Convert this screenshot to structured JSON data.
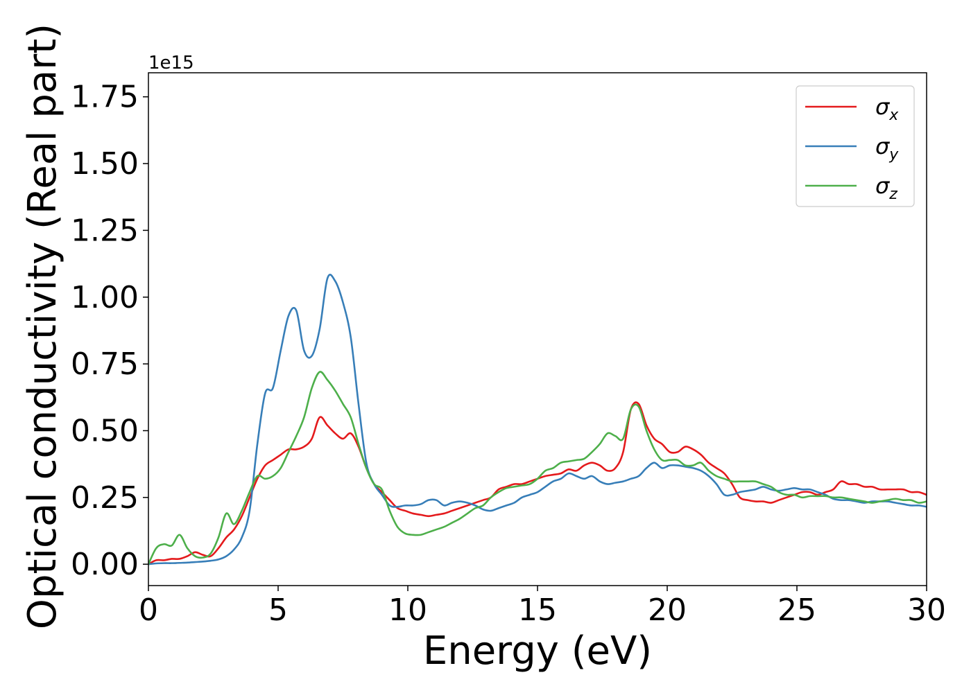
{
  "chart_data": {
    "type": "line",
    "xlabel": "Energy (eV)",
    "ylabel": "Optical conductivity (Real part)",
    "y_offset_label": "1e15",
    "xlim": [
      0,
      30
    ],
    "ylim": [
      -0.08,
      1.84
    ],
    "x_ticks": [
      0,
      5,
      10,
      15,
      20,
      25,
      30
    ],
    "x_tick_labels": [
      "0",
      "5",
      "10",
      "15",
      "20",
      "25",
      "30"
    ],
    "y_ticks": [
      0.0,
      0.25,
      0.5,
      0.75,
      1.0,
      1.25,
      1.5,
      1.75
    ],
    "y_tick_labels": [
      "0.00",
      "0.25",
      "0.50",
      "0.75",
      "1.00",
      "1.25",
      "1.50",
      "1.75"
    ],
    "grid": false,
    "legend_position": "top-right",
    "series": [
      {
        "name": "σx",
        "symbol": "σ",
        "subscript": "x",
        "color": "#e41a1c",
        "x": [
          0,
          0.3,
          0.6,
          0.9,
          1.2,
          1.5,
          1.8,
          2.1,
          2.4,
          2.7,
          3.0,
          3.3,
          3.6,
          3.9,
          4.2,
          4.5,
          4.8,
          5.1,
          5.4,
          5.7,
          6.0,
          6.3,
          6.6,
          6.9,
          7.2,
          7.5,
          7.8,
          8.1,
          8.4,
          8.7,
          9.0,
          9.3,
          9.6,
          9.9,
          10.2,
          10.5,
          10.8,
          11.1,
          11.4,
          11.7,
          12.0,
          12.3,
          12.6,
          12.9,
          13.2,
          13.5,
          13.8,
          14.1,
          14.4,
          14.7,
          15.0,
          15.3,
          15.6,
          15.9,
          16.2,
          16.5,
          16.8,
          17.1,
          17.4,
          17.7,
          18.0,
          18.3,
          18.6,
          18.9,
          19.2,
          19.5,
          19.8,
          20.1,
          20.4,
          20.7,
          21.0,
          21.3,
          21.6,
          21.9,
          22.2,
          22.5,
          22.8,
          23.1,
          23.4,
          23.7,
          24.0,
          24.3,
          24.6,
          24.9,
          25.2,
          25.5,
          25.8,
          26.1,
          26.4,
          26.7,
          27.0,
          27.3,
          27.6,
          27.9,
          28.2,
          28.5,
          28.8,
          29.1,
          29.4,
          29.7,
          30.0
        ],
        "y": [
          0.0,
          0.015,
          0.015,
          0.02,
          0.02,
          0.03,
          0.045,
          0.035,
          0.03,
          0.06,
          0.1,
          0.13,
          0.18,
          0.25,
          0.32,
          0.37,
          0.39,
          0.41,
          0.43,
          0.43,
          0.44,
          0.47,
          0.55,
          0.52,
          0.49,
          0.47,
          0.49,
          0.44,
          0.36,
          0.3,
          0.27,
          0.24,
          0.21,
          0.2,
          0.19,
          0.185,
          0.18,
          0.185,
          0.19,
          0.2,
          0.21,
          0.22,
          0.23,
          0.24,
          0.25,
          0.28,
          0.29,
          0.3,
          0.3,
          0.31,
          0.32,
          0.33,
          0.335,
          0.34,
          0.355,
          0.35,
          0.37,
          0.38,
          0.37,
          0.35,
          0.36,
          0.42,
          0.58,
          0.6,
          0.52,
          0.47,
          0.45,
          0.42,
          0.42,
          0.44,
          0.43,
          0.41,
          0.38,
          0.36,
          0.34,
          0.3,
          0.25,
          0.24,
          0.235,
          0.235,
          0.23,
          0.24,
          0.25,
          0.26,
          0.27,
          0.27,
          0.26,
          0.27,
          0.28,
          0.31,
          0.3,
          0.3,
          0.29,
          0.29,
          0.28,
          0.28,
          0.28,
          0.28,
          0.27,
          0.27,
          0.26
        ]
      },
      {
        "name": "σy",
        "symbol": "σ",
        "subscript": "y",
        "color": "#377eb8",
        "x": [
          0,
          0.3,
          0.6,
          0.9,
          1.2,
          1.5,
          1.8,
          2.1,
          2.4,
          2.7,
          3.0,
          3.3,
          3.6,
          3.9,
          4.2,
          4.5,
          4.8,
          5.1,
          5.4,
          5.7,
          6.0,
          6.3,
          6.6,
          6.9,
          7.2,
          7.5,
          7.8,
          8.1,
          8.4,
          8.7,
          9.0,
          9.3,
          9.6,
          9.9,
          10.2,
          10.5,
          10.8,
          11.1,
          11.4,
          11.7,
          12.0,
          12.3,
          12.6,
          12.9,
          13.2,
          13.5,
          13.8,
          14.1,
          14.4,
          14.7,
          15.0,
          15.3,
          15.6,
          15.9,
          16.2,
          16.5,
          16.8,
          17.1,
          17.4,
          17.7,
          18.0,
          18.3,
          18.6,
          18.9,
          19.2,
          19.5,
          19.8,
          20.1,
          20.4,
          20.7,
          21.0,
          21.3,
          21.6,
          21.9,
          22.2,
          22.5,
          22.8,
          23.1,
          23.4,
          23.7,
          24.0,
          24.3,
          24.6,
          24.9,
          25.2,
          25.5,
          25.8,
          26.1,
          26.4,
          26.7,
          27.0,
          27.3,
          27.6,
          27.9,
          28.2,
          28.5,
          28.8,
          29.1,
          29.4,
          29.7,
          30.0
        ],
        "y": [
          0.0,
          0.003,
          0.004,
          0.004,
          0.005,
          0.006,
          0.008,
          0.01,
          0.013,
          0.018,
          0.03,
          0.055,
          0.1,
          0.2,
          0.45,
          0.64,
          0.66,
          0.8,
          0.93,
          0.95,
          0.8,
          0.78,
          0.88,
          1.07,
          1.06,
          0.98,
          0.85,
          0.6,
          0.38,
          0.3,
          0.26,
          0.22,
          0.215,
          0.22,
          0.22,
          0.225,
          0.24,
          0.24,
          0.22,
          0.23,
          0.235,
          0.23,
          0.22,
          0.205,
          0.2,
          0.21,
          0.22,
          0.23,
          0.25,
          0.26,
          0.27,
          0.29,
          0.31,
          0.32,
          0.34,
          0.33,
          0.32,
          0.33,
          0.31,
          0.3,
          0.305,
          0.31,
          0.32,
          0.33,
          0.36,
          0.38,
          0.36,
          0.37,
          0.37,
          0.365,
          0.36,
          0.35,
          0.33,
          0.3,
          0.26,
          0.26,
          0.27,
          0.275,
          0.28,
          0.29,
          0.28,
          0.275,
          0.28,
          0.285,
          0.28,
          0.28,
          0.27,
          0.26,
          0.245,
          0.24,
          0.24,
          0.235,
          0.23,
          0.235,
          0.235,
          0.235,
          0.23,
          0.225,
          0.22,
          0.22,
          0.215
        ]
      },
      {
        "name": "σz",
        "symbol": "σ",
        "subscript": "z",
        "color": "#4daf4a",
        "x": [
          0,
          0.3,
          0.6,
          0.9,
          1.2,
          1.5,
          1.8,
          2.1,
          2.4,
          2.7,
          3.0,
          3.3,
          3.6,
          3.9,
          4.2,
          4.5,
          4.8,
          5.1,
          5.4,
          5.7,
          6.0,
          6.3,
          6.6,
          6.9,
          7.2,
          7.5,
          7.8,
          8.1,
          8.4,
          8.7,
          9.0,
          9.3,
          9.6,
          9.9,
          10.2,
          10.5,
          10.8,
          11.1,
          11.4,
          11.7,
          12.0,
          12.3,
          12.6,
          12.9,
          13.2,
          13.5,
          13.8,
          14.1,
          14.4,
          14.7,
          15.0,
          15.3,
          15.6,
          15.9,
          16.2,
          16.5,
          16.8,
          17.1,
          17.4,
          17.7,
          18.0,
          18.3,
          18.6,
          18.9,
          19.2,
          19.5,
          19.8,
          20.1,
          20.4,
          20.7,
          21.0,
          21.3,
          21.6,
          21.9,
          22.2,
          22.5,
          22.8,
          23.1,
          23.4,
          23.7,
          24.0,
          24.3,
          24.6,
          24.9,
          25.2,
          25.5,
          25.8,
          26.1,
          26.4,
          26.7,
          27.0,
          27.3,
          27.6,
          27.9,
          28.2,
          28.5,
          28.8,
          29.1,
          29.4,
          29.7,
          30.0
        ],
        "y": [
          0.0,
          0.06,
          0.075,
          0.07,
          0.11,
          0.06,
          0.03,
          0.025,
          0.04,
          0.1,
          0.19,
          0.15,
          0.2,
          0.27,
          0.33,
          0.32,
          0.33,
          0.36,
          0.42,
          0.48,
          0.55,
          0.66,
          0.72,
          0.69,
          0.65,
          0.6,
          0.55,
          0.45,
          0.36,
          0.3,
          0.28,
          0.2,
          0.14,
          0.115,
          0.11,
          0.11,
          0.12,
          0.13,
          0.14,
          0.155,
          0.17,
          0.19,
          0.21,
          0.22,
          0.25,
          0.27,
          0.285,
          0.29,
          0.295,
          0.3,
          0.32,
          0.35,
          0.36,
          0.38,
          0.385,
          0.39,
          0.395,
          0.42,
          0.45,
          0.49,
          0.48,
          0.47,
          0.58,
          0.59,
          0.5,
          0.43,
          0.39,
          0.39,
          0.39,
          0.37,
          0.37,
          0.38,
          0.35,
          0.33,
          0.32,
          0.31,
          0.31,
          0.31,
          0.31,
          0.3,
          0.29,
          0.27,
          0.26,
          0.26,
          0.25,
          0.255,
          0.255,
          0.255,
          0.25,
          0.25,
          0.245,
          0.24,
          0.235,
          0.23,
          0.235,
          0.24,
          0.245,
          0.24,
          0.24,
          0.23,
          0.235
        ]
      }
    ]
  }
}
